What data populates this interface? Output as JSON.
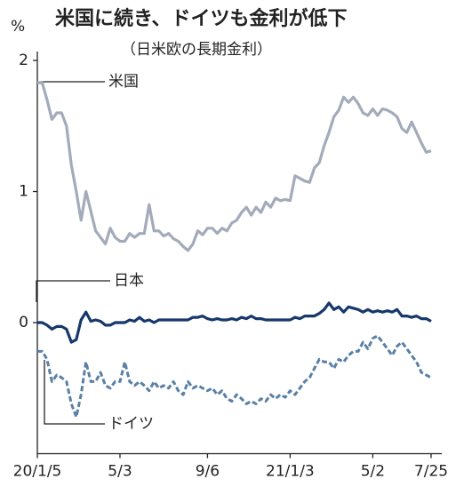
{
  "chart_data": {
    "type": "line",
    "title": "米国に続き、ドイツも金利が低下",
    "subtitle": "（日米欧の長期金利）",
    "y_label": "%",
    "categories": [
      "20/1/5",
      null,
      null,
      null,
      null,
      null,
      null,
      null,
      null,
      null,
      null,
      null,
      null,
      null,
      null,
      null,
      null,
      "5/3",
      null,
      null,
      null,
      null,
      null,
      null,
      null,
      null,
      null,
      null,
      null,
      null,
      null,
      null,
      null,
      null,
      null,
      "9/6",
      null,
      null,
      null,
      null,
      null,
      null,
      null,
      null,
      null,
      null,
      null,
      null,
      null,
      null,
      null,
      null,
      "21/1/3",
      null,
      null,
      null,
      null,
      null,
      null,
      null,
      null,
      null,
      null,
      null,
      null,
      null,
      null,
      null,
      null,
      "5/2",
      null,
      null,
      null,
      null,
      null,
      null,
      null,
      null,
      null,
      null,
      null,
      "7/25"
    ],
    "ylim": [
      -1,
      2
    ],
    "yticks": [
      0,
      1,
      2
    ],
    "grid": false,
    "series": [
      {
        "name": "米国",
        "color": "#a3abba",
        "dash": false,
        "values": [
          1.83,
          1.83,
          1.7,
          1.55,
          1.6,
          1.6,
          1.5,
          1.2,
          1.0,
          0.78,
          1.0,
          0.85,
          0.7,
          0.65,
          0.6,
          0.72,
          0.65,
          0.62,
          0.62,
          0.68,
          0.65,
          0.68,
          0.68,
          0.9,
          0.7,
          0.7,
          0.66,
          0.68,
          0.64,
          0.62,
          0.58,
          0.55,
          0.6,
          0.7,
          0.67,
          0.72,
          0.72,
          0.68,
          0.72,
          0.7,
          0.76,
          0.78,
          0.84,
          0.88,
          0.82,
          0.88,
          0.84,
          0.92,
          0.88,
          0.95,
          0.93,
          0.94,
          0.93,
          1.12,
          1.1,
          1.08,
          1.07,
          1.18,
          1.22,
          1.35,
          1.45,
          1.57,
          1.62,
          1.72,
          1.68,
          1.72,
          1.67,
          1.6,
          1.58,
          1.63,
          1.58,
          1.63,
          1.62,
          1.6,
          1.57,
          1.48,
          1.45,
          1.53,
          1.45,
          1.37,
          1.3,
          1.31
        ]
      },
      {
        "name": "日本",
        "color": "#17386a",
        "dash": false,
        "values": [
          0,
          0,
          -0.02,
          -0.05,
          -0.03,
          -0.03,
          -0.05,
          -0.15,
          -0.13,
          0.02,
          0.08,
          0.01,
          0.02,
          0.01,
          -0.02,
          -0.02,
          0,
          0,
          0,
          0.02,
          0.01,
          0.04,
          0.01,
          0.02,
          0,
          0.02,
          0.02,
          0.02,
          0.02,
          0.02,
          0.02,
          0.02,
          0.04,
          0.04,
          0.05,
          0.03,
          0.02,
          0.03,
          0.02,
          0.02,
          0.03,
          0.02,
          0.04,
          0.03,
          0.05,
          0.03,
          0.03,
          0.02,
          0.02,
          0.02,
          0.02,
          0.02,
          0.02,
          0.04,
          0.03,
          0.05,
          0.05,
          0.05,
          0.07,
          0.1,
          0.15,
          0.1,
          0.12,
          0.08,
          0.12,
          0.11,
          0.1,
          0.08,
          0.1,
          0.08,
          0.09,
          0.08,
          0.09,
          0.08,
          0.1,
          0.05,
          0.05,
          0.04,
          0.05,
          0.03,
          0.03,
          0.01
        ]
      },
      {
        "name": "ドイツ",
        "color": "#5a80a5",
        "dash": true,
        "values": [
          -0.22,
          -0.22,
          -0.28,
          -0.45,
          -0.4,
          -0.42,
          -0.45,
          -0.62,
          -0.72,
          -0.55,
          -0.3,
          -0.45,
          -0.45,
          -0.38,
          -0.48,
          -0.5,
          -0.45,
          -0.45,
          -0.3,
          -0.45,
          -0.48,
          -0.45,
          -0.48,
          -0.52,
          -0.45,
          -0.5,
          -0.48,
          -0.5,
          -0.45,
          -0.52,
          -0.55,
          -0.45,
          -0.5,
          -0.48,
          -0.5,
          -0.52,
          -0.5,
          -0.55,
          -0.52,
          -0.58,
          -0.6,
          -0.55,
          -0.58,
          -0.62,
          -0.6,
          -0.62,
          -0.58,
          -0.6,
          -0.55,
          -0.58,
          -0.55,
          -0.57,
          -0.52,
          -0.55,
          -0.5,
          -0.45,
          -0.42,
          -0.35,
          -0.28,
          -0.3,
          -0.3,
          -0.35,
          -0.28,
          -0.3,
          -0.25,
          -0.22,
          -0.22,
          -0.15,
          -0.2,
          -0.12,
          -0.1,
          -0.15,
          -0.2,
          -0.25,
          -0.18,
          -0.15,
          -0.2,
          -0.25,
          -0.3,
          -0.38,
          -0.4,
          -0.42
        ]
      }
    ]
  }
}
